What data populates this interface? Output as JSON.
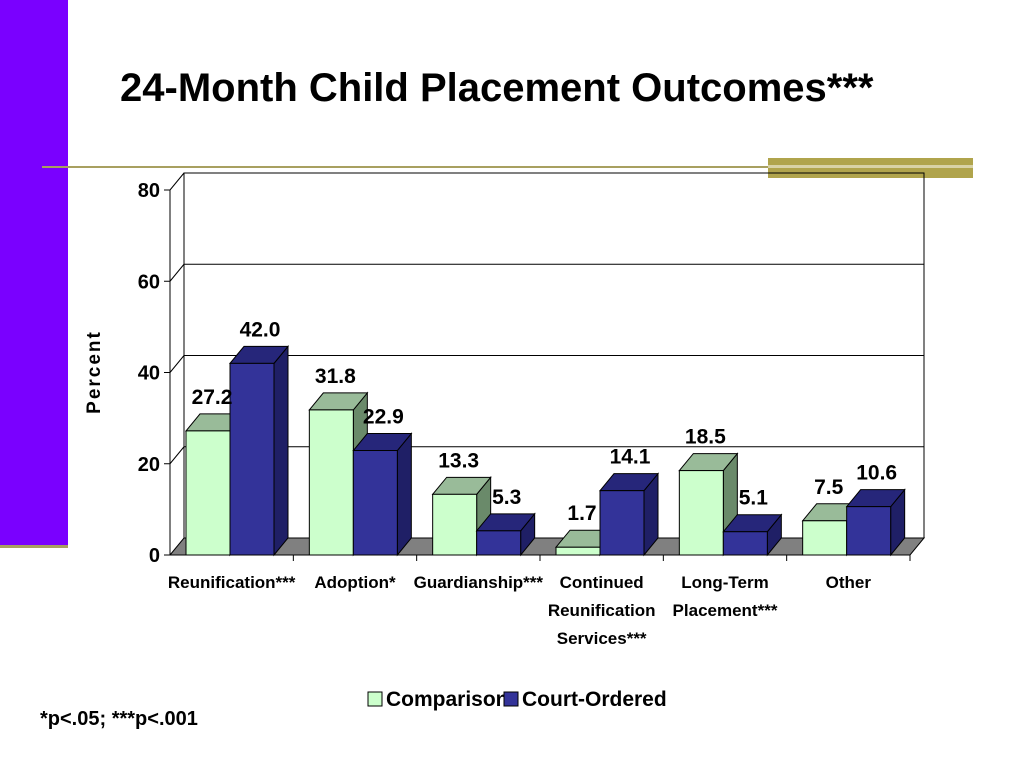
{
  "slide": {
    "title": "24-Month Child Placement Outcomes***",
    "footnote": "*p<.05; ***p<.001"
  },
  "colors": {
    "left_bar": "#7a00ff",
    "accent": "#b0a44c",
    "comparison_front": "#ccffcc",
    "comparison_top": "#99bb99",
    "comparison_side": "#6a8a6a",
    "court_front": "#333399",
    "court_top": "#26267a",
    "court_side": "#1f1f66",
    "floor": "#808080"
  },
  "chart_data": {
    "type": "bar",
    "categories": [
      [
        "Reunification***"
      ],
      [
        "Adoption*"
      ],
      [
        "Guardianship***"
      ],
      [
        "Continued",
        "Reunification",
        "Services***"
      ],
      [
        "Long-Term",
        "Placement***"
      ],
      [
        "Other"
      ]
    ],
    "series": [
      {
        "name": "Comparison",
        "values": [
          27.2,
          31.8,
          13.3,
          1.7,
          18.5,
          7.5
        ],
        "labels": [
          "27.2",
          "31.8",
          "13.3",
          "1.7",
          "18.5",
          "7.5"
        ]
      },
      {
        "name": "Court-Ordered",
        "values": [
          42.0,
          22.9,
          5.3,
          14.1,
          5.1,
          10.6
        ],
        "labels": [
          "42.0",
          "22.9",
          "5.3",
          "14.1",
          "5.1",
          "10.6"
        ]
      }
    ],
    "title": "",
    "xlabel": "",
    "ylabel": "Percent",
    "ylim": [
      0,
      80
    ],
    "yticks": [
      "0",
      "20",
      "40",
      "60",
      "80"
    ],
    "grid": true,
    "legend": "bottom",
    "style": "3d"
  }
}
